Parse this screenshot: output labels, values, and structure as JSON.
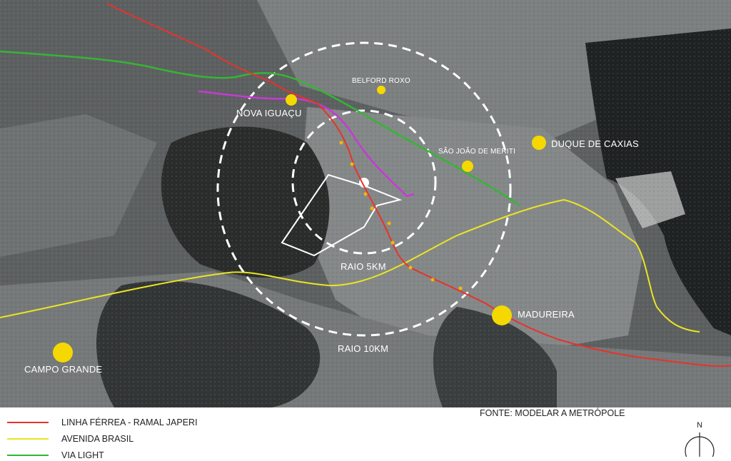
{
  "places": [
    {
      "name": "NOVA IGUAÇU"
    },
    {
      "name": "BELFORD ROXO"
    },
    {
      "name": "SÃO JOÃO DE MERITI"
    },
    {
      "name": "DUQUE DE CAXIAS"
    },
    {
      "name": "MADUREIRA"
    },
    {
      "name": "CAMPO GRANDE"
    }
  ],
  "radii": {
    "inner": "RAIO 5KM",
    "outer": "RAIO 10KM"
  },
  "legend": [
    {
      "label": "LINHA FÉRREA - RAMAL JAPERI",
      "color": "#e8322b"
    },
    {
      "label": "AVENIDA BRASIL",
      "color": "#e9e424"
    },
    {
      "label": "VIA LIGHT",
      "color": "#35b536"
    }
  ],
  "source": "FONTE: MODELAR A METRÓPOLE",
  "compass": {
    "label": "N"
  },
  "colors": {
    "railway": "#e8322b",
    "avenida_brasil": "#e9e424",
    "via_light": "#35b536",
    "purple_route": "#c63ad6",
    "city_marker": "#f5d800",
    "radius_circle": "#ffffff"
  }
}
